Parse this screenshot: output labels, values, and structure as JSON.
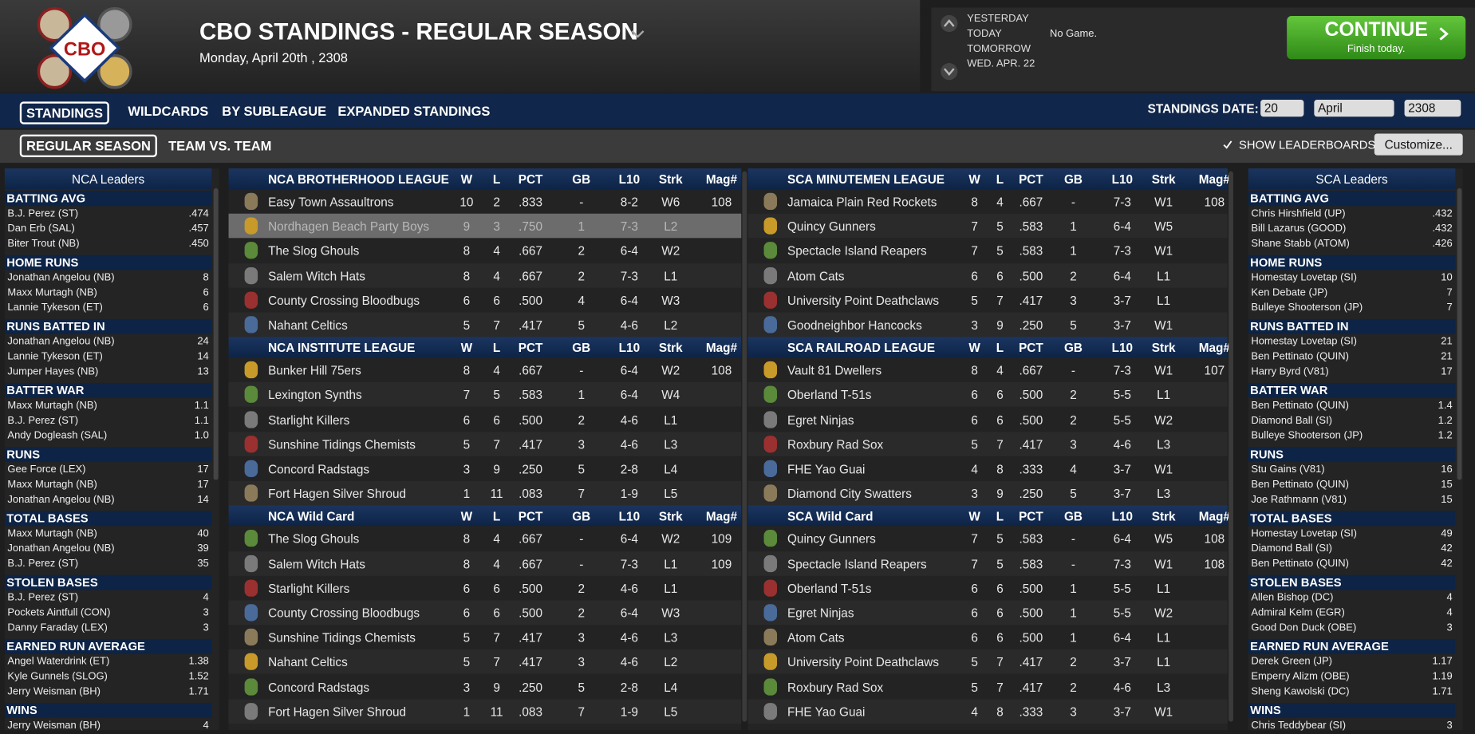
{
  "header": {
    "logo_text": "CBO",
    "title": "CBO STANDINGS - REGULAR SEASON",
    "date": "Monday, April 20th , 2308"
  },
  "nav": {
    "days": [
      "YESTERDAY",
      "TODAY",
      "TOMORROW",
      "WED. APR. 22"
    ],
    "no_game": "No Game.",
    "continue": "CONTINUE",
    "continue_sub": "Finish today."
  },
  "tabs": [
    "STANDINGS",
    "WILDCARDS",
    "BY SUBLEAGUE",
    "EXPANDED STANDINGS"
  ],
  "subtabs": [
    "REGULAR SEASON",
    "TEAM VS. TEAM"
  ],
  "standings_date": {
    "label": "STANDINGS DATE:",
    "day": "20",
    "month": "April",
    "year": "2308"
  },
  "show_leaderboards": "SHOW LEADERBOARDS",
  "customize": "Customize...",
  "standings": {
    "columns": [
      "W",
      "L",
      "PCT",
      "GB",
      "L10",
      "Strk",
      "Mag#"
    ],
    "left": [
      {
        "title": "NCA BROTHERHOOD LEAGUE",
        "rows": [
          [
            "Easy Town Assaultrons",
            10,
            2,
            ".833",
            "-",
            "8-2",
            "W6",
            108
          ],
          [
            "Nordhagen Beach Party Boys",
            9,
            3,
            ".750",
            1,
            "7-3",
            "L2",
            null
          ],
          [
            "The Slog Ghouls",
            8,
            4,
            ".667",
            2,
            "6-4",
            "W2",
            null
          ],
          [
            "Salem Witch Hats",
            8,
            4,
            ".667",
            2,
            "7-3",
            "L1",
            null
          ],
          [
            "County Crossing Bloodbugs",
            6,
            6,
            ".500",
            4,
            "6-4",
            "W3",
            null
          ],
          [
            "Nahant Celtics",
            5,
            7,
            ".417",
            5,
            "4-6",
            "L2",
            null
          ]
        ]
      },
      {
        "title": "NCA INSTITUTE LEAGUE",
        "rows": [
          [
            "Bunker Hill 75ers",
            8,
            4,
            ".667",
            "-",
            "6-4",
            "W2",
            108
          ],
          [
            "Lexington Synths",
            7,
            5,
            ".583",
            1,
            "6-4",
            "W4",
            null
          ],
          [
            "Starlight Killers",
            6,
            6,
            ".500",
            2,
            "4-6",
            "L1",
            null
          ],
          [
            "Sunshine Tidings Chemists",
            5,
            7,
            ".417",
            3,
            "4-6",
            "L3",
            null
          ],
          [
            "Concord Radstags",
            3,
            9,
            ".250",
            5,
            "2-8",
            "L4",
            null
          ],
          [
            "Fort Hagen Silver Shroud",
            1,
            11,
            ".083",
            7,
            "1-9",
            "L5",
            null
          ]
        ]
      },
      {
        "title": "NCA  Wild Card",
        "rows": [
          [
            "The Slog Ghouls",
            8,
            4,
            ".667",
            "-",
            "6-4",
            "W2",
            109
          ],
          [
            "Salem Witch Hats",
            8,
            4,
            ".667",
            "-",
            "7-3",
            "L1",
            109
          ],
          [
            "Starlight Killers",
            6,
            6,
            ".500",
            2,
            "4-6",
            "L1",
            null
          ],
          [
            "County Crossing Bloodbugs",
            6,
            6,
            ".500",
            2,
            "6-4",
            "W3",
            null
          ],
          [
            "Sunshine Tidings Chemists",
            5,
            7,
            ".417",
            3,
            "4-6",
            "L3",
            null
          ],
          [
            "Nahant Celtics",
            5,
            7,
            ".417",
            3,
            "4-6",
            "L2",
            null
          ],
          [
            "Concord Radstags",
            3,
            9,
            ".250",
            5,
            "2-8",
            "L4",
            null
          ],
          [
            "Fort Hagen Silver Shroud",
            1,
            11,
            ".083",
            7,
            "1-9",
            "L5",
            null
          ]
        ]
      }
    ],
    "right": [
      {
        "title": "SCA MINUTEMEN LEAGUE",
        "rows": [
          [
            "Jamaica Plain Red Rockets",
            8,
            4,
            ".667",
            "-",
            "7-3",
            "W1",
            108
          ],
          [
            "Quincy Gunners",
            7,
            5,
            ".583",
            1,
            "6-4",
            "W5",
            null
          ],
          [
            "Spectacle Island Reapers",
            7,
            5,
            ".583",
            1,
            "7-3",
            "W1",
            null
          ],
          [
            "Atom Cats",
            6,
            6,
            ".500",
            2,
            "6-4",
            "L1",
            null
          ],
          [
            "University Point Deathclaws",
            5,
            7,
            ".417",
            3,
            "3-7",
            "L1",
            null
          ],
          [
            "Goodneighbor Hancocks",
            3,
            9,
            ".250",
            5,
            "3-7",
            "W1",
            null
          ]
        ]
      },
      {
        "title": "SCA RAILROAD LEAGUE",
        "rows": [
          [
            "Vault 81 Dwellers",
            8,
            4,
            ".667",
            "-",
            "7-3",
            "W1",
            107
          ],
          [
            "Oberland T-51s",
            6,
            6,
            ".500",
            2,
            "5-5",
            "L1",
            null
          ],
          [
            "Egret Ninjas",
            6,
            6,
            ".500",
            2,
            "5-5",
            "W2",
            null
          ],
          [
            "Roxbury Rad Sox",
            5,
            7,
            ".417",
            3,
            "4-6",
            "L3",
            null
          ],
          [
            "FHE Yao Guai",
            4,
            8,
            ".333",
            4,
            "3-7",
            "W1",
            null
          ],
          [
            "Diamond City Swatters",
            3,
            9,
            ".250",
            5,
            "3-7",
            "L3",
            null
          ]
        ]
      },
      {
        "title": "SCA  Wild Card",
        "rows": [
          [
            "Quincy Gunners",
            7,
            5,
            ".583",
            "-",
            "6-4",
            "W5",
            108
          ],
          [
            "Spectacle Island Reapers",
            7,
            5,
            ".583",
            "-",
            "7-3",
            "W1",
            108
          ],
          [
            "Oberland T-51s",
            6,
            6,
            ".500",
            1,
            "5-5",
            "L1",
            null
          ],
          [
            "Egret Ninjas",
            6,
            6,
            ".500",
            1,
            "5-5",
            "W2",
            null
          ],
          [
            "Atom Cats",
            6,
            6,
            ".500",
            1,
            "6-4",
            "L1",
            null
          ],
          [
            "University Point Deathclaws",
            5,
            7,
            ".417",
            2,
            "3-7",
            "L1",
            null
          ],
          [
            "Roxbury Rad Sox",
            5,
            7,
            ".417",
            2,
            "4-6",
            "L3",
            null
          ],
          [
            "FHE Yao Guai",
            4,
            8,
            ".333",
            3,
            "3-7",
            "W1",
            null
          ]
        ]
      }
    ]
  },
  "leaders": {
    "left": {
      "title": "NCA Leaders",
      "sections": [
        {
          "title": "BATTING AVG",
          "rows": [
            [
              "B.J. Perez (ST)",
              ".474"
            ],
            [
              "Dan Erb (SAL)",
              ".457"
            ],
            [
              "Biter Trout (NB)",
              ".450"
            ]
          ]
        },
        {
          "title": "HOME RUNS",
          "rows": [
            [
              "Jonathan Angelou (NB)",
              "8"
            ],
            [
              "Maxx Murtagh (NB)",
              "6"
            ],
            [
              "Lannie Tykeson (ET)",
              "6"
            ]
          ]
        },
        {
          "title": "RUNS BATTED IN",
          "rows": [
            [
              "Jonathan Angelou (NB)",
              "24"
            ],
            [
              "Lannie Tykeson (ET)",
              "14"
            ],
            [
              "Jumper Hayes (NB)",
              "13"
            ]
          ]
        },
        {
          "title": "BATTER WAR",
          "rows": [
            [
              "Maxx Murtagh (NB)",
              "1.1"
            ],
            [
              "B.J. Perez (ST)",
              "1.1"
            ],
            [
              "Andy Dogleash (SAL)",
              "1.0"
            ]
          ]
        },
        {
          "title": "RUNS",
          "rows": [
            [
              "Gee Force (LEX)",
              "17"
            ],
            [
              "Maxx Murtagh (NB)",
              "17"
            ],
            [
              "Jonathan Angelou (NB)",
              "14"
            ]
          ]
        },
        {
          "title": "TOTAL BASES",
          "rows": [
            [
              "Maxx Murtagh (NB)",
              "40"
            ],
            [
              "Jonathan Angelou (NB)",
              "39"
            ],
            [
              "B.J. Perez (ST)",
              "35"
            ]
          ]
        },
        {
          "title": "STOLEN BASES",
          "rows": [
            [
              "B.J. Perez (ST)",
              "4"
            ],
            [
              "Pockets Aintfull (CON)",
              "3"
            ],
            [
              "Danny Faraday (LEX)",
              "3"
            ]
          ]
        },
        {
          "title": "EARNED RUN AVERAGE",
          "rows": [
            [
              "Angel Waterdrink (ET)",
              "1.38"
            ],
            [
              "Kyle Gunnels (SLOG)",
              "1.52"
            ],
            [
              "Jerry Weisman (BH)",
              "1.71"
            ]
          ]
        },
        {
          "title": "WINS",
          "rows": [
            [
              "Jerry Weisman (BH)",
              "4"
            ]
          ]
        }
      ]
    },
    "right": {
      "title": "SCA Leaders",
      "sections": [
        {
          "title": "BATTING AVG",
          "rows": [
            [
              "Chris Hirshfield (UP)",
              ".432"
            ],
            [
              "Bill Lazarus (GOOD)",
              ".432"
            ],
            [
              "Shane Stabb (ATOM)",
              ".426"
            ]
          ]
        },
        {
          "title": "HOME RUNS",
          "rows": [
            [
              "Homestay Lovetap (SI)",
              "10"
            ],
            [
              "Ken Debate (JP)",
              "7"
            ],
            [
              "Bulleye Shooterson (JP)",
              "7"
            ]
          ]
        },
        {
          "title": "RUNS BATTED IN",
          "rows": [
            [
              "Homestay Lovetap (SI)",
              "21"
            ],
            [
              "Ben Pettinato (QUIN)",
              "21"
            ],
            [
              "Harry Byrd (V81)",
              "17"
            ]
          ]
        },
        {
          "title": "BATTER WAR",
          "rows": [
            [
              "Ben Pettinato (QUIN)",
              "1.4"
            ],
            [
              "Diamond Ball (SI)",
              "1.2"
            ],
            [
              "Bulleye Shooterson (JP)",
              "1.2"
            ]
          ]
        },
        {
          "title": "RUNS",
          "rows": [
            [
              "Stu Gains (V81)",
              "16"
            ],
            [
              "Ben Pettinato (QUIN)",
              "15"
            ],
            [
              "Joe Rathmann (V81)",
              "15"
            ]
          ]
        },
        {
          "title": "TOTAL BASES",
          "rows": [
            [
              "Homestay Lovetap (SI)",
              "49"
            ],
            [
              "Diamond Ball (SI)",
              "42"
            ],
            [
              "Ben Pettinato (QUIN)",
              "42"
            ]
          ]
        },
        {
          "title": "STOLEN BASES",
          "rows": [
            [
              "Allen Bishop (DC)",
              "4"
            ],
            [
              "Admiral Kelm (EGR)",
              "4"
            ],
            [
              "Good Don Duck (OBE)",
              "3"
            ]
          ]
        },
        {
          "title": "EARNED RUN AVERAGE",
          "rows": [
            [
              "Derek Green (JP)",
              "1.17"
            ],
            [
              "Emperry Alizm (OBE)",
              "1.19"
            ],
            [
              "Sheng Kawolski (DC)",
              "1.71"
            ]
          ]
        },
        {
          "title": "WINS",
          "rows": [
            [
              "Chris Teddybear (SI)",
              "3"
            ]
          ]
        }
      ]
    }
  }
}
